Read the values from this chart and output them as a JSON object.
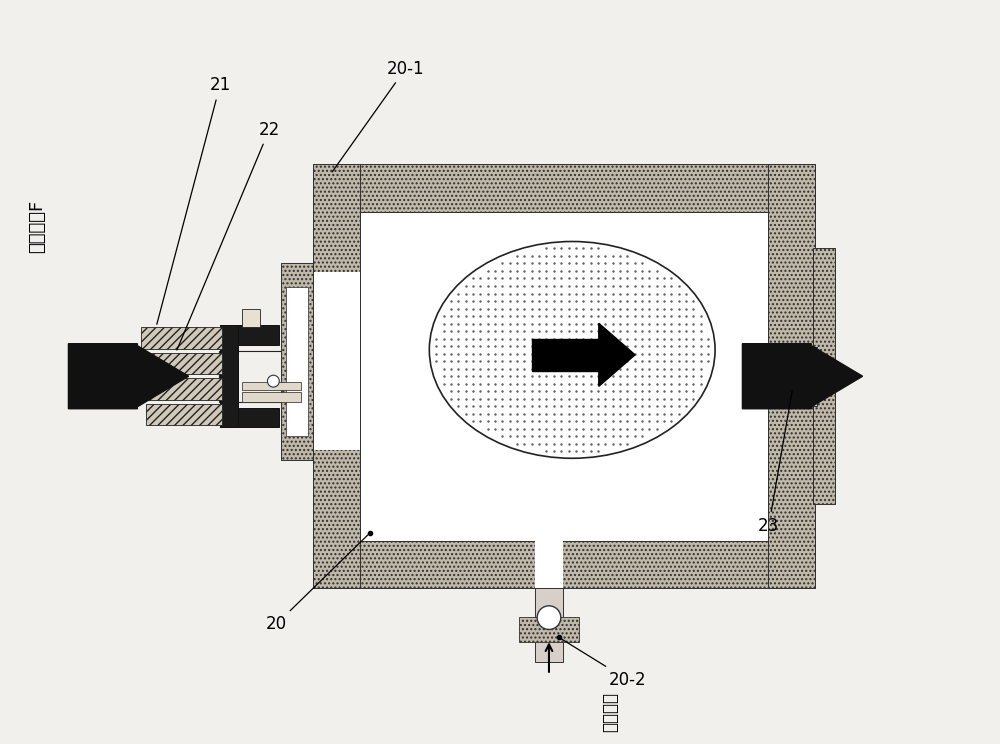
{
  "bg_color": "#f2f0ed",
  "hatch_color": "#b8b0a0",
  "hatch_pattern": "....",
  "inner_color": "#ffffff",
  "label_color": "#000000",
  "labels": {
    "20": "20",
    "20-1": "20-1",
    "20-2": "20-2",
    "21": "21",
    "22": "22",
    "23": "23",
    "left_text": "外部磁场F",
    "gas_text": "气体导入"
  },
  "fig_w": 10.0,
  "fig_h": 7.44,
  "dpi": 100,
  "xlim": [
    0,
    10
  ],
  "ylim": [
    0,
    7.44
  ]
}
